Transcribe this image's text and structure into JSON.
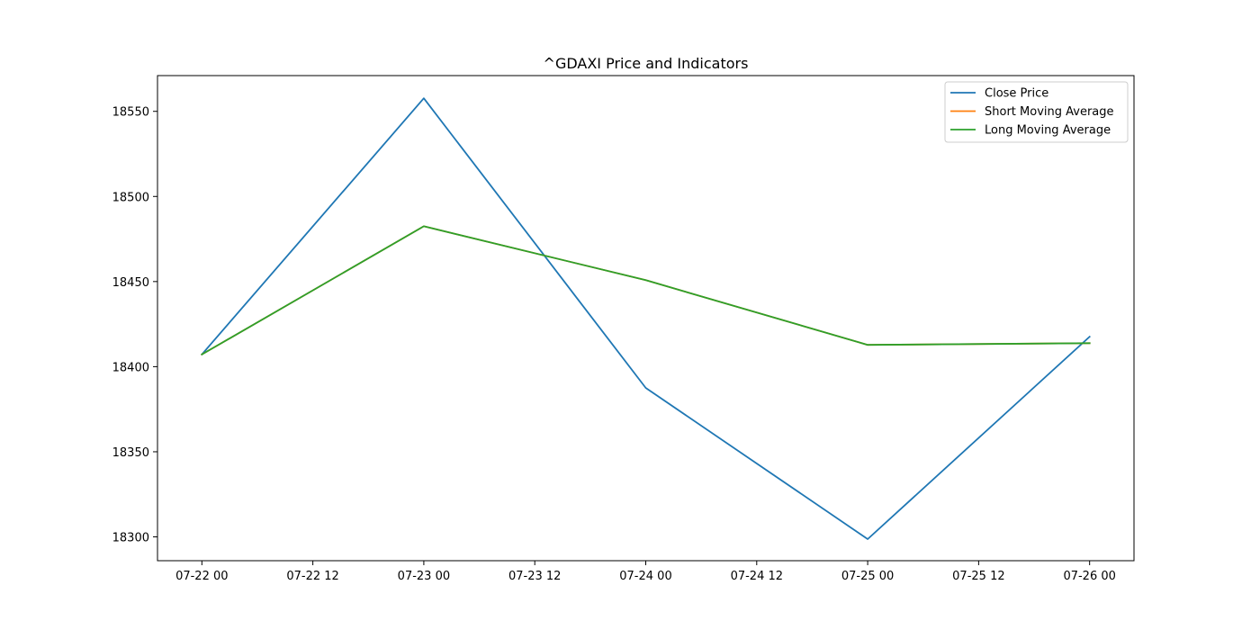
{
  "chart_data": {
    "type": "line",
    "title": "^GDAXI Price and Indicators",
    "xlabel": "",
    "ylabel": "",
    "x": [
      "2024-07-22",
      "2024-07-23",
      "2024-07-24",
      "2024-07-25",
      "2024-07-26"
    ],
    "xlim": [
      "2024-07-21T19:12",
      "2024-07-26T04:48"
    ],
    "ylim": [
      18286,
      18571
    ],
    "x_tick_labels": [
      "07-22 00",
      "07-22 12",
      "07-23 00",
      "07-23 12",
      "07-24 00",
      "07-24 12",
      "07-25 00",
      "07-25 12",
      "07-26 00"
    ],
    "y_ticks": [
      18300,
      18350,
      18400,
      18450,
      18500,
      18550
    ],
    "y_tick_labels": [
      "18300",
      "18350",
      "18400",
      "18450",
      "18500",
      "18550"
    ],
    "series": [
      {
        "name": "Close Price",
        "color": "#1f77b4",
        "values": [
          18407.2,
          18557.7,
          18387.5,
          18298.7,
          18417.6
        ]
      },
      {
        "name": "Short Moving Average",
        "color": "#ff7f0e",
        "values": [
          18407.2,
          18482.5,
          18450.8,
          18412.8,
          18413.8
        ]
      },
      {
        "name": "Long Moving Average",
        "color": "#2ca02c",
        "values": [
          18407.2,
          18482.5,
          18450.8,
          18412.8,
          18413.8
        ]
      }
    ],
    "grid": false,
    "legend_position": "top-right"
  }
}
